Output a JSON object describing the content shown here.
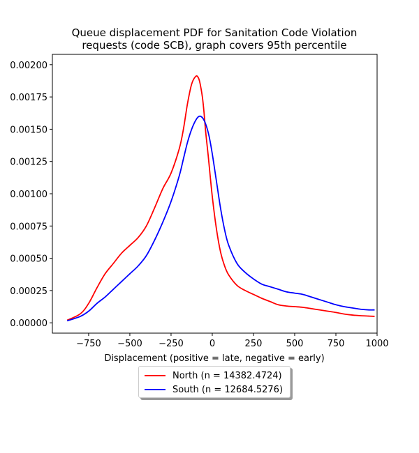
{
  "chart_data": {
    "type": "line",
    "title_line1": "Queue displacement PDF for Sanitation Code Violation",
    "title_line2": "requests (code SCB), graph covers 95th percentile",
    "xlabel": "Displacement (positive = late, negative = early)",
    "ylabel": "",
    "xlim": [
      -970,
      1000
    ],
    "ylim": [
      -8e-05,
      0.00208
    ],
    "xticks": [
      -750,
      -500,
      -250,
      0,
      250,
      500,
      750,
      1000
    ],
    "xtick_labels": [
      "−750",
      "−500",
      "−250",
      "0",
      "250",
      "500",
      "750",
      "1000"
    ],
    "yticks": [
      0,
      0.00025,
      0.0005,
      0.00075,
      0.001,
      0.00125,
      0.0015,
      0.00175,
      0.002
    ],
    "ytick_labels": [
      "0.00000",
      "0.00025",
      "0.00050",
      "0.00075",
      "0.00100",
      "0.00125",
      "0.00150",
      "0.00175",
      "0.00200"
    ],
    "grid": false,
    "legend_position": "below",
    "series": [
      {
        "name": "North (n = 14382.4724)",
        "color": "#ff0000",
        "x": [
          -880,
          -800,
          -750,
          -700,
          -650,
          -600,
          -550,
          -500,
          -450,
          -400,
          -350,
          -300,
          -250,
          -200,
          -175,
          -150,
          -125,
          -100,
          -85,
          -75,
          -60,
          -50,
          -40,
          -25,
          0,
          25,
          50,
          75,
          100,
          150,
          200,
          250,
          300,
          350,
          400,
          450,
          500,
          550,
          600,
          650,
          700,
          750,
          800,
          850,
          900,
          950,
          985
        ],
        "y": [
          2e-05,
          7e-05,
          0.00015,
          0.00027,
          0.00038,
          0.00046,
          0.00054,
          0.0006,
          0.00066,
          0.00075,
          0.00089,
          0.00104,
          0.00116,
          0.00135,
          0.0015,
          0.0017,
          0.00185,
          0.00191,
          0.0019,
          0.00186,
          0.00175,
          0.00163,
          0.00148,
          0.0013,
          0.00098,
          0.00073,
          0.00055,
          0.00044,
          0.00037,
          0.00029,
          0.00025,
          0.00022,
          0.00019,
          0.000165,
          0.00014,
          0.00013,
          0.000125,
          0.00012,
          0.00011,
          0.0001,
          9e-05,
          8e-05,
          6.8e-05,
          6e-05,
          5.5e-05,
          5.2e-05,
          5e-05
        ]
      },
      {
        "name": "South (n = 12684.5276)",
        "color": "#0000ff",
        "x": [
          -880,
          -800,
          -750,
          -700,
          -650,
          -600,
          -550,
          -500,
          -450,
          -400,
          -350,
          -300,
          -250,
          -200,
          -175,
          -150,
          -125,
          -100,
          -80,
          -60,
          -40,
          -20,
          0,
          25,
          50,
          75,
          100,
          150,
          200,
          250,
          300,
          350,
          400,
          450,
          500,
          550,
          600,
          650,
          700,
          750,
          800,
          850,
          900,
          950,
          985
        ],
        "y": [
          1.5e-05,
          5e-05,
          9e-05,
          0.00015,
          0.0002,
          0.00026,
          0.00032,
          0.00038,
          0.00044,
          0.00052,
          0.00064,
          0.00078,
          0.00094,
          0.00114,
          0.00127,
          0.0014,
          0.0015,
          0.00157,
          0.0016,
          0.00159,
          0.00154,
          0.00145,
          0.00131,
          0.0011,
          0.00089,
          0.00072,
          0.0006,
          0.00046,
          0.00039,
          0.00034,
          0.0003,
          0.00028,
          0.00026,
          0.00024,
          0.00023,
          0.00022,
          0.0002,
          0.00018,
          0.00016,
          0.00014,
          0.000125,
          0.000115,
          0.000105,
          0.0001,
          0.0001
        ]
      }
    ]
  }
}
